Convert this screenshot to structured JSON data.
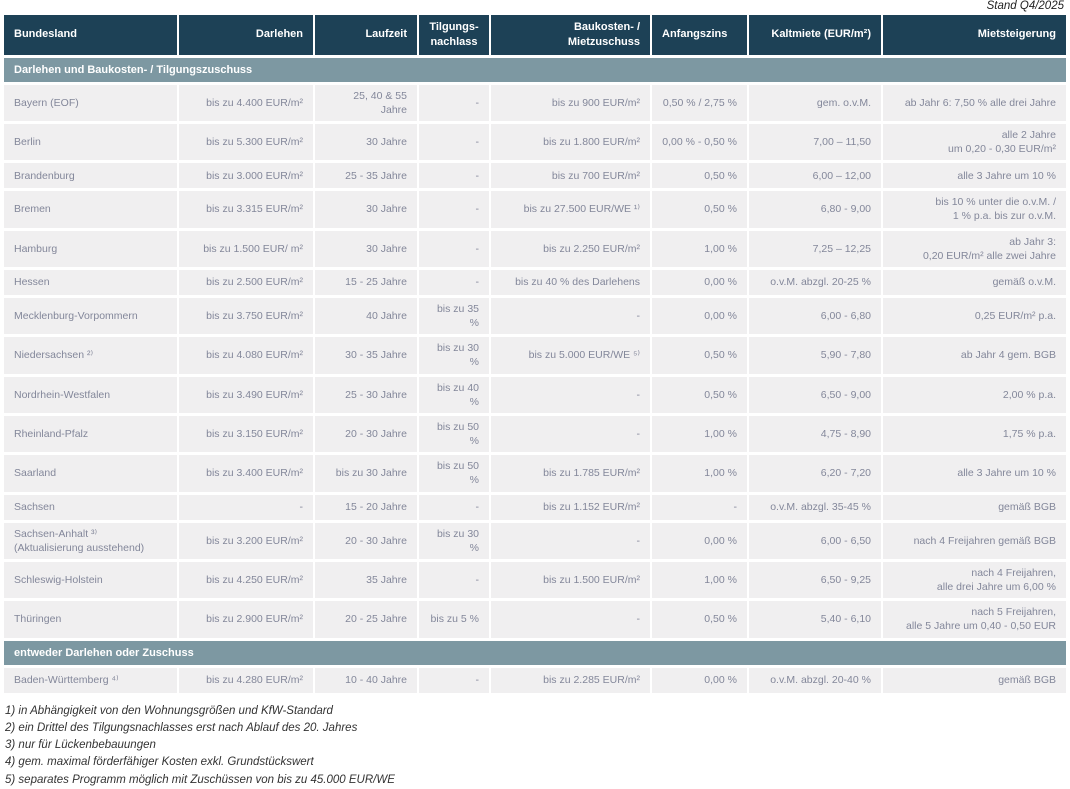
{
  "meta": {
    "stand": "Stand Q4/2025"
  },
  "colors": {
    "header_bg": "#1d4156",
    "section_bg": "#7d98a2",
    "row_bg": "#f0eff0",
    "cell_text": "#83879a"
  },
  "table": {
    "columns": [
      {
        "key": "bundesland",
        "label": "Bundesland"
      },
      {
        "key": "darlehen",
        "label": "Darlehen"
      },
      {
        "key": "laufzeit",
        "label": "Laufzeit"
      },
      {
        "key": "tilgungsnachlass",
        "label": "Tilgungs-\nnachlass"
      },
      {
        "key": "baukosten-mietzuschuss",
        "label": "Baukosten- /\nMietzuschuss"
      },
      {
        "key": "anfangszins",
        "label": "Anfangszins"
      },
      {
        "key": "kaltmiete",
        "label": "Kaltmiete (EUR/m²)"
      },
      {
        "key": "mietsteigerung",
        "label": "Mietsteigerung"
      }
    ],
    "sections": [
      {
        "title": "Darlehen und Baukosten- / Tilgungszuschuss",
        "rows": [
          [
            "Bayern (EOF)",
            "bis zu 4.400 EUR/m²",
            "25, 40 & 55 Jahre",
            "-",
            "bis zu 900 EUR/m²",
            "0,50 % / 2,75 %",
            "gem. o.v.M.",
            "ab Jahr 6: 7,50 % alle drei Jahre"
          ],
          [
            "Berlin",
            "bis zu 5.300 EUR/m²",
            "30 Jahre",
            "-",
            "bis zu 1.800 EUR/m²",
            "0,00 % - 0,50 %",
            "7,00 – 11,50",
            "alle 2 Jahre\num 0,20 - 0,30 EUR/m²"
          ],
          [
            "Brandenburg",
            "bis zu 3.000 EUR/m²",
            "25 - 35 Jahre",
            "-",
            "bis zu 700 EUR/m²",
            "0,50 %",
            "6,00 – 12,00",
            "alle 3 Jahre um 10 %"
          ],
          [
            "Bremen",
            "bis zu 3.315 EUR/m²",
            "30 Jahre",
            "-",
            "bis zu 27.500 EUR/WE ¹⁾",
            "0,50 %",
            "6,80 - 9,00",
            "bis 10 % unter die o.v.M. /\n1 % p.a. bis zur o.v.M."
          ],
          [
            "Hamburg",
            "bis zu 1.500 EUR/ m²",
            "30 Jahre",
            "-",
            "bis zu 2.250 EUR/m²",
            "1,00 %",
            "7,25 – 12,25",
            "ab Jahr 3:\n0,20 EUR/m² alle zwei Jahre"
          ],
          [
            "Hessen",
            "bis zu 2.500 EUR/m²",
            "15 - 25 Jahre",
            "-",
            "bis zu 40 % des Darlehens",
            "0,00 %",
            "o.v.M. abzgl. 20-25 %",
            "gemäß o.v.M."
          ],
          [
            "Mecklenburg-Vorpommern",
            "bis zu 3.750 EUR/m²",
            "40 Jahre",
            "bis zu 35 %",
            "-",
            "0,00 %",
            "6,00 - 6,80",
            "0,25 EUR/m² p.a."
          ],
          [
            "Niedersachsen ²⁾",
            "bis zu 4.080 EUR/m²",
            "30 - 35 Jahre",
            "bis zu 30 %",
            "bis zu 5.000 EUR/WE ⁵⁾",
            "0,50 %",
            "5,90 - 7,80",
            "ab Jahr 4 gem. BGB"
          ],
          [
            "Nordrhein-Westfalen",
            "bis zu 3.490 EUR/m²",
            "25 - 30 Jahre",
            "bis zu 40 %",
            "-",
            "0,50 %",
            "6,50 - 9,00",
            "2,00 % p.a."
          ],
          [
            "Rheinland-Pfalz",
            "bis zu 3.150 EUR/m²",
            "20 - 30 Jahre",
            "bis zu 50 %",
            "-",
            "1,00 %",
            "4,75 - 8,90",
            "1,75 % p.a."
          ],
          [
            "Saarland",
            "bis zu 3.400 EUR/m²",
            "bis zu  30 Jahre",
            "bis zu 50 %",
            "bis zu 1.785 EUR/m²",
            "1,00 %",
            "6,20 - 7,20",
            "alle 3 Jahre um 10 %"
          ],
          [
            "Sachsen",
            "-",
            "15 - 20 Jahre",
            "-",
            "bis zu 1.152 EUR/m²",
            "-",
            "o.v.M. abzgl. 35-45 %",
            "gemäß BGB"
          ],
          [
            "Sachsen-Anhalt ³⁾\n(Aktualisierung ausstehend)",
            "bis zu 3.200 EUR/m²",
            "20 - 30 Jahre",
            "bis zu 30 %",
            "-",
            "0,00 %",
            "6,00 - 6,50",
            "nach 4 Freijahren gemäß BGB"
          ],
          [
            "Schleswig-Holstein",
            "bis zu 4.250 EUR/m²",
            "35 Jahre",
            "-",
            "bis zu 1.500 EUR/m²",
            "1,00 %",
            "6,50 - 9,25",
            "nach 4 Freijahren,\nalle drei Jahre um 6,00 %"
          ],
          [
            "Thüringen",
            "bis zu 2.900 EUR/m²",
            "20 - 25 Jahre",
            "bis zu 5 %",
            "-",
            "0,50 %",
            "5,40 - 6,10",
            "nach 5 Freijahren,\nalle 5 Jahre um 0,40 - 0,50 EUR"
          ]
        ]
      },
      {
        "title": "entweder Darlehen oder Zuschuss",
        "rows": [
          [
            "Baden-Württemberg ⁴⁾",
            "bis zu 4.280 EUR/m²",
            "10 - 40 Jahre",
            "-",
            "bis zu 2.285 EUR/m²",
            "0,00 %",
            "o.v.M. abzgl. 20-40 %",
            "gemäß BGB"
          ]
        ]
      }
    ]
  },
  "footnotes": [
    "1) in Abhängigkeit von den Wohnungsgrößen und KfW-Standard",
    "2) ein Drittel des Tilgungsnachlasses erst nach Ablauf des 20. Jahres",
    "3) nur für Lückenbebauungen",
    "4) gem. maximal förderfähiger Kosten exkl. Grundstückswert",
    "5) separates Programm möglich mit Zuschüssen von bis zu 45.000 EUR/WE"
  ]
}
